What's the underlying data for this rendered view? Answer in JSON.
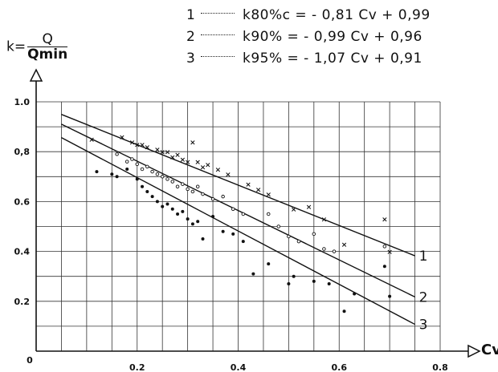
{
  "legend": [
    {
      "num": "1",
      "eq": "k80%c = - 0,81 Cv + 0,99"
    },
    {
      "num": "2",
      "eq": "k90% = - 0,99 Cv + 0,96"
    },
    {
      "num": "3",
      "eq": "k95% = - 1,07 Cv + 0,91"
    }
  ],
  "ylabel": {
    "prefix": "k=",
    "numerator": "Q",
    "denominator": "Qmin"
  },
  "xlabel": "Cv",
  "chart_data": {
    "type": "scatter",
    "xlim": [
      0,
      0.8
    ],
    "ylim": [
      0,
      1.0
    ],
    "grid": true,
    "legend_position": "top-right",
    "x_ticks": [
      {
        "v": 0,
        "label": "0"
      },
      {
        "v": 0.2,
        "label": "0.2"
      },
      {
        "v": 0.4,
        "label": "0.4"
      },
      {
        "v": 0.6,
        "label": "0.6"
      },
      {
        "v": 0.8,
        "label": "0.8"
      }
    ],
    "y_ticks": [
      {
        "v": 0.2,
        "label": "0.2"
      },
      {
        "v": 0.4,
        "label": "0.4"
      },
      {
        "v": 0.6,
        "label": "0.6"
      },
      {
        "v": 0.8,
        "label": "0,8"
      },
      {
        "v": 1.0,
        "label": "1.0"
      }
    ],
    "lines": [
      {
        "label": "1",
        "slope": -0.81,
        "intercept": 0.99,
        "x_range": [
          0.05,
          0.75
        ]
      },
      {
        "label": "2",
        "slope": -0.99,
        "intercept": 0.96,
        "x_range": [
          0.05,
          0.75
        ]
      },
      {
        "label": "3",
        "slope": -1.07,
        "intercept": 0.91,
        "x_range": [
          0.05,
          0.75
        ]
      }
    ],
    "series": [
      {
        "marker": "x",
        "points": [
          [
            0.11,
            0.85
          ],
          [
            0.17,
            0.86
          ],
          [
            0.19,
            0.84
          ],
          [
            0.2,
            0.83
          ],
          [
            0.21,
            0.83
          ],
          [
            0.22,
            0.82
          ],
          [
            0.24,
            0.81
          ],
          [
            0.25,
            0.8
          ],
          [
            0.26,
            0.8
          ],
          [
            0.27,
            0.78
          ],
          [
            0.28,
            0.79
          ],
          [
            0.29,
            0.77
          ],
          [
            0.3,
            0.76
          ],
          [
            0.31,
            0.84
          ],
          [
            0.32,
            0.76
          ],
          [
            0.33,
            0.74
          ],
          [
            0.34,
            0.75
          ],
          [
            0.36,
            0.73
          ],
          [
            0.38,
            0.71
          ],
          [
            0.42,
            0.67
          ],
          [
            0.44,
            0.65
          ],
          [
            0.46,
            0.63
          ],
          [
            0.51,
            0.57
          ],
          [
            0.54,
            0.58
          ],
          [
            0.57,
            0.53
          ],
          [
            0.61,
            0.43
          ],
          [
            0.69,
            0.53
          ],
          [
            0.7,
            0.4
          ]
        ]
      },
      {
        "marker": "open",
        "points": [
          [
            0.16,
            0.79
          ],
          [
            0.18,
            0.76
          ],
          [
            0.19,
            0.77
          ],
          [
            0.2,
            0.75
          ],
          [
            0.21,
            0.73
          ],
          [
            0.22,
            0.74
          ],
          [
            0.23,
            0.72
          ],
          [
            0.24,
            0.71
          ],
          [
            0.25,
            0.7
          ],
          [
            0.26,
            0.69
          ],
          [
            0.27,
            0.68
          ],
          [
            0.28,
            0.66
          ],
          [
            0.29,
            0.67
          ],
          [
            0.3,
            0.65
          ],
          [
            0.31,
            0.64
          ],
          [
            0.32,
            0.66
          ],
          [
            0.33,
            0.63
          ],
          [
            0.35,
            0.61
          ],
          [
            0.37,
            0.62
          ],
          [
            0.39,
            0.57
          ],
          [
            0.41,
            0.55
          ],
          [
            0.46,
            0.55
          ],
          [
            0.48,
            0.5
          ],
          [
            0.5,
            0.46
          ],
          [
            0.52,
            0.44
          ],
          [
            0.55,
            0.47
          ],
          [
            0.57,
            0.41
          ],
          [
            0.59,
            0.4
          ],
          [
            0.69,
            0.42
          ]
        ]
      },
      {
        "marker": "filled",
        "points": [
          [
            0.12,
            0.72
          ],
          [
            0.15,
            0.71
          ],
          [
            0.16,
            0.7
          ],
          [
            0.18,
            0.73
          ],
          [
            0.2,
            0.69
          ],
          [
            0.21,
            0.66
          ],
          [
            0.22,
            0.64
          ],
          [
            0.23,
            0.62
          ],
          [
            0.24,
            0.6
          ],
          [
            0.25,
            0.58
          ],
          [
            0.26,
            0.59
          ],
          [
            0.27,
            0.57
          ],
          [
            0.28,
            0.55
          ],
          [
            0.29,
            0.56
          ],
          [
            0.3,
            0.53
          ],
          [
            0.31,
            0.51
          ],
          [
            0.32,
            0.52
          ],
          [
            0.33,
            0.45
          ],
          [
            0.35,
            0.54
          ],
          [
            0.37,
            0.48
          ],
          [
            0.39,
            0.47
          ],
          [
            0.41,
            0.44
          ],
          [
            0.43,
            0.31
          ],
          [
            0.46,
            0.35
          ],
          [
            0.5,
            0.27
          ],
          [
            0.51,
            0.3
          ],
          [
            0.55,
            0.28
          ],
          [
            0.58,
            0.27
          ],
          [
            0.61,
            0.16
          ],
          [
            0.63,
            0.23
          ],
          [
            0.69,
            0.34
          ],
          [
            0.7,
            0.22
          ]
        ]
      }
    ]
  }
}
